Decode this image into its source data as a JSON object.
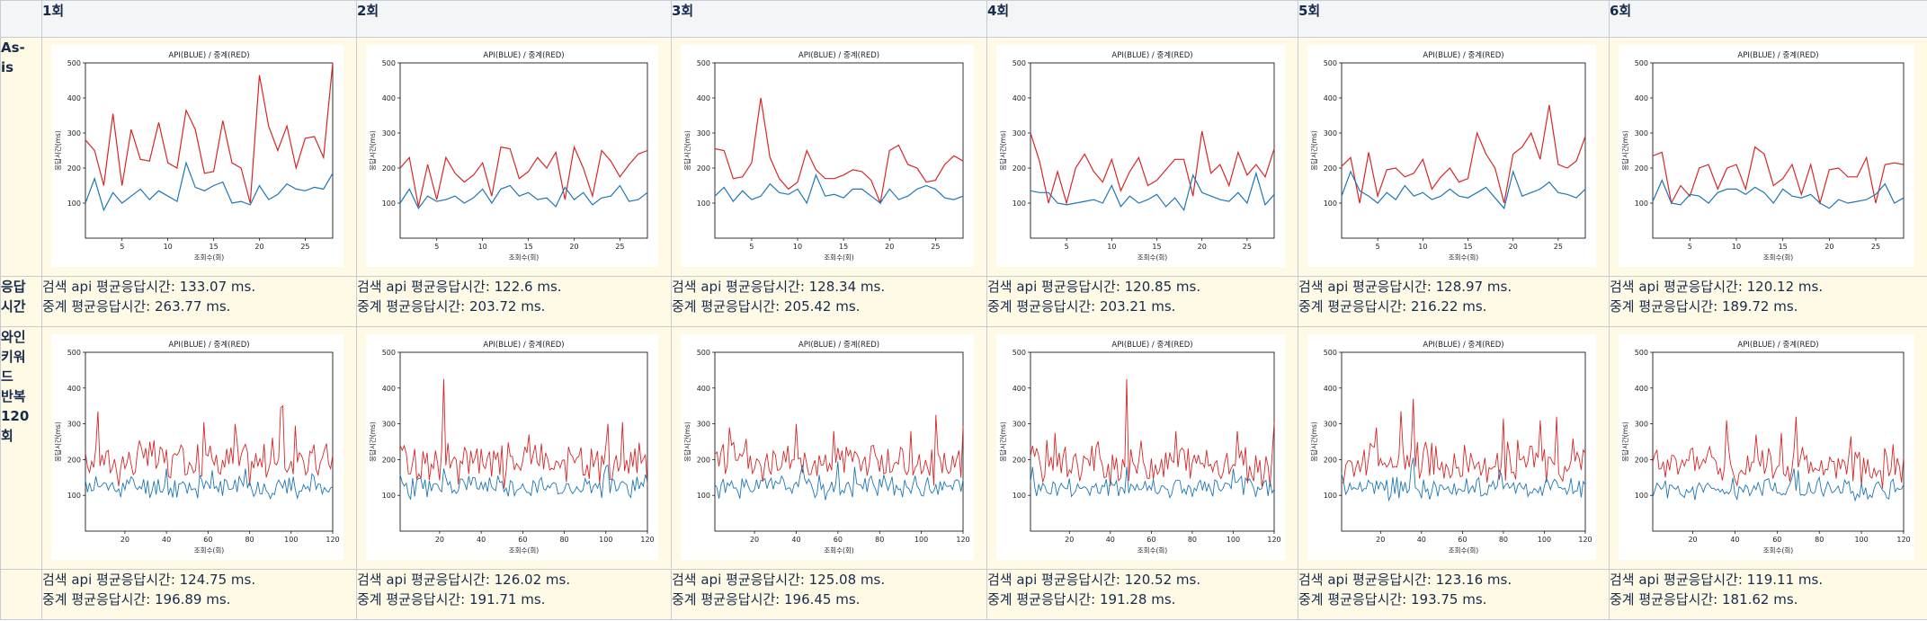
{
  "columns": [
    "1회",
    "2회",
    "3회",
    "4회",
    "5회",
    "6회"
  ],
  "row_labels": {
    "as_is": "As-\nis",
    "response": "응답\n시간",
    "repeat": "와인\n키워\n드\n반복\n120\n회"
  },
  "as_is_summary": [
    {
      "api": "검색 api 평균응답시간: 133.07 ms.",
      "relay": "중계 평균응답시간: 263.77 ms."
    },
    {
      "api": "검색 api 평균응답시간: 122.6 ms.",
      "relay": "중계 평균응답시간: 203.72 ms."
    },
    {
      "api": "검색 api 평균응답시간: 128.34 ms.",
      "relay": "중계 평균응답시간: 205.42 ms."
    },
    {
      "api": "검색 api 평균응답시간: 120.85 ms.",
      "relay": "중계 평균응답시간: 203.21 ms."
    },
    {
      "api": "검색 api 평균응답시간: 128.97 ms.",
      "relay": "중계 평균응답시간: 216.22 ms."
    },
    {
      "api": "검색 api 평균응답시간: 120.12 ms.",
      "relay": "중계 평균응답시간: 189.72 ms."
    }
  ],
  "repeat_summary": [
    {
      "api": "검색 api 평균응답시간: 124.75 ms.",
      "relay": "중계 평균응답시간: 196.89 ms."
    },
    {
      "api": "검색 api 평균응답시간: 126.02 ms.",
      "relay": "중계 평균응답시간: 191.71 ms."
    },
    {
      "api": "검색 api 평균응답시간: 125.08 ms.",
      "relay": "중계 평균응답시간: 196.45 ms."
    },
    {
      "api": "검색 api 평균응답시간: 120.52 ms.",
      "relay": "중계 평균응답시간: 191.28 ms."
    },
    {
      "api": "검색 api 평균응답시간: 123.16 ms.",
      "relay": "중계 평균응답시간: 193.75 ms."
    },
    {
      "api": "검색 api 평균응답시간: 119.11 ms.",
      "relay": "중계 평균응답시간: 181.62 ms."
    }
  ],
  "colors": {
    "api": "#1f77b4",
    "relay": "#d62728"
  },
  "chart_data": [
    {
      "type": "line",
      "row": "as_is",
      "title": "API(BLUE) / 중계(RED)",
      "xlabel": "조회수(회)",
      "ylabel": "응답시간(ms)",
      "xlim": [
        1,
        28
      ],
      "ylim": [
        0,
        500
      ],
      "xticks": [
        5,
        10,
        15,
        20,
        25
      ],
      "yticks": [
        100,
        200,
        300,
        400,
        500
      ],
      "series": [
        {
          "color": "blue",
          "values": [
            100,
            170,
            80,
            130,
            100,
            120,
            140,
            110,
            135,
            120,
            105,
            215,
            145,
            135,
            150,
            160,
            100,
            105,
            95,
            150,
            110,
            125,
            155,
            140,
            135,
            145,
            140,
            185
          ]
        },
        {
          "color": "red",
          "values": [
            280,
            250,
            150,
            355,
            150,
            310,
            225,
            220,
            330,
            215,
            200,
            365,
            310,
            185,
            190,
            335,
            215,
            200,
            100,
            465,
            320,
            250,
            320,
            200,
            285,
            290,
            230,
            500
          ]
        }
      ]
    },
    {
      "type": "line",
      "row": "as_is",
      "title": "API(BLUE) / 중계(RED)",
      "xlabel": "조회수(회)",
      "ylabel": "응답시간(ms)",
      "xlim": [
        1,
        28
      ],
      "ylim": [
        0,
        500
      ],
      "xticks": [
        5,
        10,
        15,
        20,
        25
      ],
      "yticks": [
        100,
        200,
        300,
        400,
        500
      ],
      "series": [
        {
          "color": "blue",
          "values": [
            100,
            140,
            85,
            120,
            105,
            110,
            120,
            100,
            115,
            140,
            100,
            140,
            150,
            120,
            130,
            110,
            115,
            90,
            145,
            110,
            130,
            95,
            115,
            120,
            150,
            105,
            110,
            130
          ]
        },
        {
          "color": "red",
          "values": [
            200,
            230,
            90,
            210,
            110,
            230,
            185,
            160,
            180,
            215,
            120,
            260,
            255,
            170,
            190,
            230,
            200,
            245,
            110,
            260,
            200,
            120,
            250,
            220,
            175,
            210,
            240,
            250
          ]
        }
      ]
    },
    {
      "type": "line",
      "row": "as_is",
      "title": "API(BLUE) / 중계(RED)",
      "xlabel": "조회수(회)",
      "ylabel": "응답시간(ms)",
      "xlim": [
        1,
        28
      ],
      "ylim": [
        0,
        500
      ],
      "xticks": [
        5,
        10,
        15,
        20,
        25
      ],
      "yticks": [
        100,
        200,
        300,
        400,
        500
      ],
      "series": [
        {
          "color": "blue",
          "values": [
            120,
            145,
            105,
            135,
            110,
            120,
            155,
            130,
            125,
            140,
            100,
            180,
            120,
            125,
            115,
            140,
            140,
            120,
            100,
            140,
            110,
            120,
            140,
            150,
            140,
            115,
            110,
            120
          ]
        },
        {
          "color": "red",
          "values": [
            255,
            250,
            170,
            175,
            215,
            400,
            230,
            170,
            140,
            160,
            250,
            195,
            170,
            170,
            180,
            195,
            190,
            165,
            100,
            250,
            265,
            210,
            200,
            160,
            165,
            210,
            235,
            220
          ]
        }
      ]
    },
    {
      "type": "line",
      "row": "as_is",
      "title": "API(BLUE) / 중계(RED)",
      "xlabel": "조회수(회)",
      "ylabel": "응답시간(ms)",
      "xlim": [
        1,
        28
      ],
      "ylim": [
        0,
        500
      ],
      "xticks": [
        5,
        10,
        15,
        20,
        25
      ],
      "yticks": [
        100,
        200,
        300,
        400,
        500
      ],
      "series": [
        {
          "color": "blue",
          "values": [
            135,
            130,
            130,
            100,
            95,
            100,
            105,
            110,
            100,
            150,
            90,
            120,
            100,
            110,
            125,
            90,
            115,
            80,
            180,
            130,
            120,
            110,
            105,
            130,
            100,
            185,
            95,
            125
          ]
        },
        {
          "color": "red",
          "values": [
            300,
            220,
            100,
            190,
            100,
            200,
            240,
            190,
            160,
            225,
            135,
            190,
            230,
            150,
            165,
            195,
            225,
            225,
            120,
            305,
            185,
            210,
            150,
            245,
            180,
            210,
            175,
            255
          ]
        }
      ]
    },
    {
      "type": "line",
      "row": "as_is",
      "title": "API(BLUE) / 중계(RED)",
      "xlabel": "조회수(회)",
      "ylabel": "응답시간(ms)",
      "xlim": [
        1,
        28
      ],
      "ylim": [
        0,
        500
      ],
      "xticks": [
        5,
        10,
        15,
        20,
        25
      ],
      "yticks": [
        100,
        200,
        300,
        400,
        500
      ],
      "series": [
        {
          "color": "blue",
          "values": [
            120,
            190,
            135,
            120,
            100,
            130,
            110,
            150,
            120,
            130,
            110,
            120,
            140,
            120,
            115,
            130,
            145,
            115,
            85,
            190,
            120,
            130,
            140,
            160,
            130,
            125,
            115,
            140
          ]
        },
        {
          "color": "red",
          "values": [
            205,
            230,
            100,
            245,
            120,
            195,
            200,
            175,
            185,
            225,
            140,
            175,
            200,
            160,
            170,
            300,
            240,
            200,
            100,
            240,
            260,
            300,
            225,
            380,
            210,
            200,
            220,
            290
          ]
        }
      ]
    },
    {
      "type": "line",
      "row": "as_is",
      "title": "API(BLUE) / 중계(RED)",
      "xlabel": "조회수(회)",
      "ylabel": "응답시간(ms)",
      "xlim": [
        1,
        28
      ],
      "ylim": [
        0,
        500
      ],
      "xticks": [
        5,
        10,
        15,
        20,
        25
      ],
      "yticks": [
        100,
        200,
        300,
        400,
        500
      ],
      "series": [
        {
          "color": "blue",
          "values": [
            105,
            165,
            100,
            95,
            125,
            120,
            100,
            130,
            140,
            140,
            125,
            145,
            130,
            100,
            140,
            120,
            115,
            125,
            100,
            85,
            110,
            100,
            105,
            110,
            125,
            155,
            100,
            115
          ]
        },
        {
          "color": "red",
          "values": [
            235,
            245,
            100,
            150,
            120,
            200,
            210,
            140,
            200,
            210,
            140,
            260,
            240,
            150,
            170,
            210,
            125,
            210,
            100,
            195,
            200,
            175,
            175,
            230,
            100,
            210,
            215,
            210
          ]
        }
      ]
    },
    {
      "type": "line",
      "row": "repeat",
      "title": "API(BLUE) / 중계(RED)",
      "xlabel": "조회수(회)",
      "ylabel": "응답시간(ms)",
      "xlim": [
        1,
        120
      ],
      "ylim": [
        0,
        500
      ],
      "xticks": [
        20,
        40,
        60,
        80,
        100,
        120
      ],
      "yticks": [
        100,
        200,
        300,
        400,
        500
      ],
      "series": [
        {
          "color": "blue",
          "seed": 11,
          "base": 125,
          "amp": 28,
          "spikes": [
            [
              40,
              175
            ],
            [
              62,
              170
            ],
            [
              78,
              175
            ],
            [
              110,
              160
            ]
          ]
        },
        {
          "color": "red",
          "seed": 17,
          "base": 195,
          "amp": 50,
          "spikes": [
            [
              7,
              335
            ],
            [
              32,
              250
            ],
            [
              58,
              305
            ],
            [
              73,
              300
            ],
            [
              95,
              345
            ],
            [
              96,
              350
            ],
            [
              102,
              295
            ]
          ]
        }
      ]
    },
    {
      "type": "line",
      "row": "repeat",
      "title": "API(BLUE) / 중계(RED)",
      "xlabel": "조회수(회)",
      "ylabel": "응답시간(ms)",
      "xlim": [
        1,
        120
      ],
      "ylim": [
        0,
        500
      ],
      "xticks": [
        20,
        40,
        60,
        80,
        100,
        120
      ],
      "yticks": [
        100,
        200,
        300,
        400,
        500
      ],
      "series": [
        {
          "color": "blue",
          "seed": 23,
          "base": 125,
          "amp": 28,
          "spikes": [
            [
              22,
              175
            ],
            [
              100,
              180
            ],
            [
              101,
              185
            ]
          ]
        },
        {
          "color": "red",
          "seed": 29,
          "base": 190,
          "amp": 50,
          "spikes": [
            [
              22,
              425
            ],
            [
              63,
              270
            ],
            [
              101,
              300
            ],
            [
              108,
              305
            ]
          ]
        }
      ]
    },
    {
      "type": "line",
      "row": "repeat",
      "title": "API(BLUE) / 중계(RED)",
      "xlabel": "조회수(회)",
      "ylabel": "응답시간(ms)",
      "xlim": [
        1,
        120
      ],
      "ylim": [
        0,
        500
      ],
      "xticks": [
        20,
        40,
        60,
        80,
        100,
        120
      ],
      "yticks": [
        100,
        200,
        300,
        400,
        500
      ],
      "series": [
        {
          "color": "blue",
          "seed": 31,
          "base": 125,
          "amp": 28,
          "spikes": [
            [
              43,
              185
            ],
            [
              60,
              195
            ],
            [
              68,
              180
            ]
          ]
        },
        {
          "color": "red",
          "seed": 37,
          "base": 195,
          "amp": 50,
          "spikes": [
            [
              8,
              290
            ],
            [
              40,
              300
            ],
            [
              58,
              280
            ],
            [
              95,
              280
            ],
            [
              107,
              325
            ],
            [
              120,
              295
            ]
          ]
        }
      ]
    },
    {
      "type": "line",
      "row": "repeat",
      "title": "API(BLUE) / 중계(RED)",
      "xlabel": "조회수(회)",
      "ylabel": "응답시간(ms)",
      "xlim": [
        1,
        120
      ],
      "ylim": [
        0,
        500
      ],
      "xticks": [
        20,
        40,
        60,
        80,
        100,
        120
      ],
      "yticks": [
        100,
        200,
        300,
        400,
        500
      ],
      "series": [
        {
          "color": "blue",
          "seed": 41,
          "base": 120,
          "amp": 26,
          "spikes": [
            [
              2,
              180
            ],
            [
              48,
              180
            ],
            [
              100,
              175
            ]
          ]
        },
        {
          "color": "red",
          "seed": 43,
          "base": 190,
          "amp": 50,
          "spikes": [
            [
              13,
              275
            ],
            [
              48,
              425
            ],
            [
              72,
              280
            ],
            [
              102,
              280
            ],
            [
              120,
              305
            ]
          ]
        }
      ]
    },
    {
      "type": "line",
      "row": "repeat",
      "title": "API(BLUE) / 중계(RED)",
      "xlabel": "조회수(회)",
      "ylabel": "응답시간(ms)",
      "xlim": [
        1,
        120
      ],
      "ylim": [
        0,
        500
      ],
      "xticks": [
        20,
        40,
        60,
        80,
        100,
        120
      ],
      "yticks": [
        100,
        200,
        300,
        400,
        500
      ],
      "series": [
        {
          "color": "blue",
          "seed": 47,
          "base": 122,
          "amp": 27,
          "spikes": [
            [
              35,
              180
            ],
            [
              36,
              205
            ],
            [
              78,
              170
            ]
          ]
        },
        {
          "color": "red",
          "seed": 53,
          "base": 192,
          "amp": 50,
          "spikes": [
            [
              18,
              290
            ],
            [
              30,
              335
            ],
            [
              36,
              370
            ],
            [
              80,
              315
            ],
            [
              98,
              310
            ],
            [
              106,
              320
            ]
          ]
        }
      ]
    },
    {
      "type": "line",
      "row": "repeat",
      "title": "API(BLUE) / 중계(RED)",
      "xlabel": "조회수(회)",
      "ylabel": "응답시간(ms)",
      "xlim": [
        1,
        120
      ],
      "ylim": [
        0,
        500
      ],
      "xticks": [
        20,
        40,
        60,
        80,
        100,
        120
      ],
      "yticks": [
        100,
        200,
        300,
        400,
        500
      ],
      "series": [
        {
          "color": "blue",
          "seed": 59,
          "base": 118,
          "amp": 25,
          "spikes": [
            [
              68,
              175
            ],
            [
              70,
              170
            ]
          ]
        },
        {
          "color": "red",
          "seed": 61,
          "base": 182,
          "amp": 45,
          "spikes": [
            [
              36,
              310
            ],
            [
              50,
              270
            ],
            [
              62,
              275
            ],
            [
              69,
              320
            ],
            [
              95,
              265
            ]
          ]
        }
      ]
    }
  ]
}
